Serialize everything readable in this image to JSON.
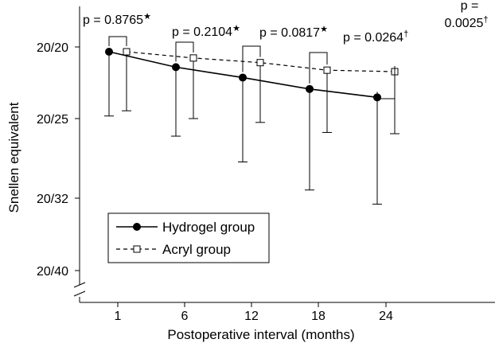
{
  "chart_data": {
    "type": "line",
    "xlabel": "Postoperative interval (months)",
    "ylabel": "Snellen equivalent",
    "categories": [
      "1",
      "6",
      "12",
      "18",
      "24"
    ],
    "y_ticks": [
      "20/20",
      "20/25",
      "20/32",
      "20/40"
    ],
    "y_scale": "logMAR (Snellen)",
    "legend_position": "bottom-left",
    "grid": false,
    "series": [
      {
        "name": "Hydrogel group",
        "marker": "filled-circle",
        "line_style": "solid",
        "values": [
          "20/20.3",
          "20/21.3",
          "20/22.0",
          "20/22.8",
          "20/23.4"
        ],
        "error_lower": [
          "20/24.8",
          "20/26.4",
          "20/28.6",
          "20/31.2",
          "20/32.6"
        ]
      },
      {
        "name": "Acryl group",
        "marker": "open-square",
        "line_style": "dashed",
        "values": [
          "20/20.3",
          "20/20.7",
          "20/21.0",
          "20/21.5",
          "20/21.6"
        ],
        "error_lower": [
          "20/24.4",
          "20/25.0",
          "20/25.3",
          "20/26.1",
          "20/26.2"
        ]
      }
    ],
    "annotations": [
      {
        "text": "p = 0.8765",
        "mark": "★"
      },
      {
        "text": "p = 0.2104",
        "mark": "★"
      },
      {
        "text": "p = 0.0817",
        "mark": "★"
      },
      {
        "text": "p = 0.0264",
        "mark": "†"
      },
      {
        "text_line1": "p =",
        "text_line2": "0.0025",
        "mark": "†"
      }
    ]
  }
}
